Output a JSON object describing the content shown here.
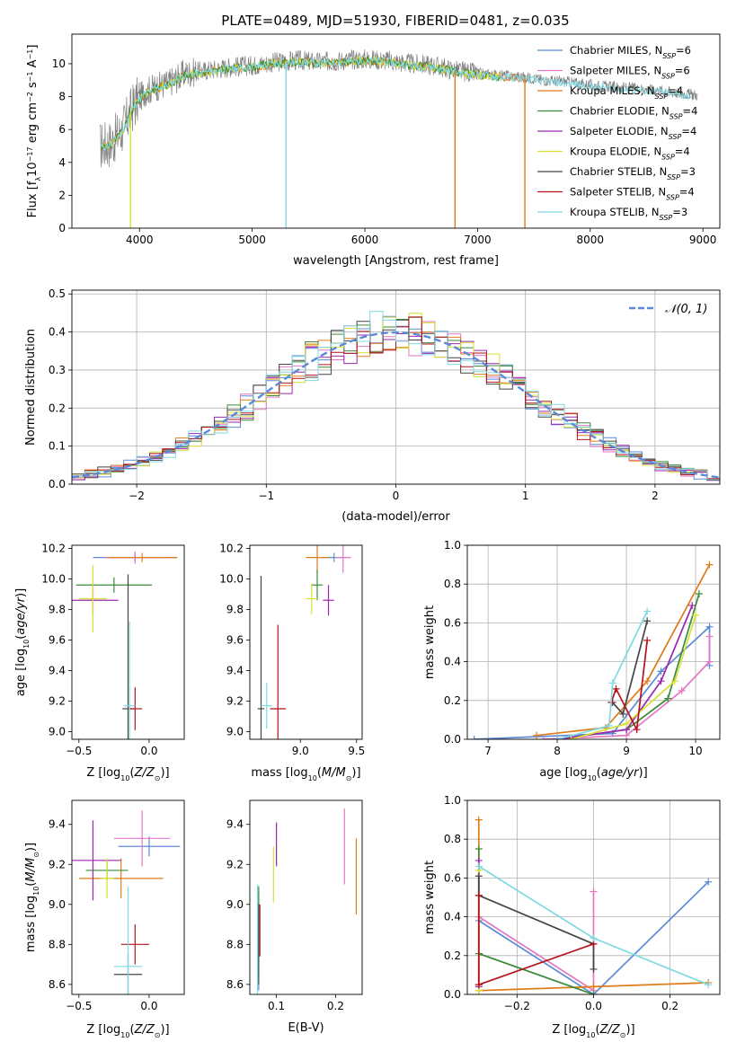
{
  "title": "PLATE=0489, MJD=51930, FIBERID=0481, z=0.035",
  "colors": {
    "c1": "#5b8bd6",
    "c2": "#e377c2",
    "c3": "#e07b1a",
    "c4": "#3b8a3b",
    "c5": "#9b27b0",
    "c6": "#d6e035",
    "c7": "#444444",
    "c8": "#b5121b",
    "c9": "#7fd9e3",
    "gray": "#808080",
    "normal": "#5b8bd6"
  },
  "legend": [
    {
      "name": "Chabrier MILES, N_{SSP}=6",
      "color": "#5b8bd6"
    },
    {
      "name": "Salpeter MILES, N_{SSP}=6",
      "color": "#e377c2"
    },
    {
      "name": "Kroupa MILES, N_{SSP}=4",
      "color": "#e07b1a"
    },
    {
      "name": "Chabrier ELODIE, N_{SSP}=4",
      "color": "#3b8a3b"
    },
    {
      "name": "Salpeter ELODIE, N_{SSP}=4",
      "color": "#9b27b0"
    },
    {
      "name": "Kroupa ELODIE, N_{SSP}=4",
      "color": "#d6e035"
    },
    {
      "name": "Chabrier STELIB, N_{SSP}=3",
      "color": "#444444"
    },
    {
      "name": "Salpeter STELIB, N_{SSP}=4",
      "color": "#b5121b"
    },
    {
      "name": "Kroupa STELIB, N_{SSP}=3",
      "color": "#7fd9e3"
    }
  ],
  "chart_data": [
    {
      "id": "spectrum",
      "type": "line",
      "xlabel": "wavelength [Angstrom, rest frame]",
      "ylabel": "Flux [f_λ 10^{-17} erg cm^{-2} s^{-1} A^{-1}]",
      "xlim": [
        3400,
        9150
      ],
      "ylim": [
        0,
        11.8
      ],
      "xticks": [
        4000,
        5000,
        6000,
        7000,
        8000,
        9000
      ],
      "yticks": [
        0,
        2,
        4,
        6,
        8,
        10
      ],
      "continuum": [
        [
          3650,
          5.0
        ],
        [
          3750,
          5.2
        ],
        [
          3850,
          6.0
        ],
        [
          3950,
          7.5
        ],
        [
          4050,
          8.3
        ],
        [
          4150,
          8.6
        ],
        [
          4250,
          8.8
        ],
        [
          4400,
          9.4
        ],
        [
          4600,
          9.6
        ],
        [
          4800,
          9.8
        ],
        [
          5000,
          9.9
        ],
        [
          5200,
          10.1
        ],
        [
          5400,
          10.2
        ],
        [
          5600,
          10.1
        ],
        [
          5800,
          10.2
        ],
        [
          6000,
          10.3
        ],
        [
          6200,
          10.2
        ],
        [
          6400,
          10.0
        ],
        [
          6600,
          9.9
        ],
        [
          6800,
          9.6
        ],
        [
          7000,
          9.4
        ],
        [
          7200,
          9.3
        ],
        [
          7400,
          9.2
        ],
        [
          7600,
          9.0
        ],
        [
          7800,
          8.9
        ],
        [
          8000,
          8.7
        ],
        [
          8200,
          8.6
        ],
        [
          8400,
          8.5
        ],
        [
          8600,
          8.4
        ],
        [
          8800,
          8.2
        ],
        [
          8950,
          8.1
        ]
      ]
    },
    {
      "id": "residuals",
      "type": "histogram",
      "xlabel": "(data-model)/error",
      "ylabel": "Normed distribution",
      "xlim": [
        -2.5,
        2.5
      ],
      "ylim": [
        0,
        0.51
      ],
      "xticks": [
        -2,
        -1,
        0,
        1,
        2
      ],
      "yticks": [
        0.0,
        0.1,
        0.2,
        0.3,
        0.4,
        0.5
      ],
      "legend": "𝒩(0, 1)"
    },
    {
      "id": "age_vs_Z",
      "type": "scatter",
      "xlabel": "Z [log10(Z/Z☉)]",
      "ylabel": "age [log10(age/yr)]",
      "xlim": [
        -0.55,
        0.25
      ],
      "ylim": [
        8.95,
        10.22
      ],
      "xticks": [
        -0.5,
        0.0
      ],
      "yticks": [
        9.0,
        9.2,
        9.4,
        9.6,
        9.8,
        10.0,
        10.2
      ],
      "points": [
        {
          "x": -0.1,
          "y": 10.14,
          "xerr": 0.3,
          "yerr": 0.03,
          "c": "#5b8bd6"
        },
        {
          "x": -0.1,
          "y": 10.14,
          "xerr": 0.22,
          "yerr": 0.04,
          "c": "#e377c2"
        },
        {
          "x": -0.05,
          "y": 10.14,
          "xerr": 0.25,
          "yerr": 0.03,
          "c": "#e07b1a"
        },
        {
          "x": -0.25,
          "y": 9.96,
          "xerr": 0.27,
          "yerr": 0.05,
          "c": "#3b8a3b"
        },
        {
          "x": -0.4,
          "y": 9.86,
          "xerr": 0.18,
          "yerr": 0.1,
          "c": "#9b27b0"
        },
        {
          "x": -0.4,
          "y": 9.87,
          "xerr": 0.1,
          "yerr": 0.22,
          "c": "#d6e035"
        },
        {
          "x": -0.15,
          "y": 9.15,
          "xerr": 0.04,
          "yerr": 0.88,
          "c": "#444444"
        },
        {
          "x": -0.1,
          "y": 9.15,
          "xerr": 0.05,
          "yerr": 0.14,
          "c": "#b5121b"
        },
        {
          "x": -0.14,
          "y": 9.17,
          "xerr": 0.04,
          "yerr": 0.55,
          "c": "#7fd9e3"
        }
      ]
    },
    {
      "id": "age_vs_mass",
      "type": "scatter",
      "xlabel": "mass [log10(M/M☉)]",
      "ylabel": "",
      "xlim": [
        8.55,
        9.55
      ],
      "ylim": [
        8.95,
        10.22
      ],
      "xticks": [
        9.0,
        9.5
      ],
      "yticks": [
        9.0,
        9.2,
        9.4,
        9.6,
        9.8,
        10.0,
        10.2
      ],
      "points": [
        {
          "x": 9.3,
          "y": 10.14,
          "xerr": 0.1,
          "yerr": 0.03,
          "c": "#5b8bd6"
        },
        {
          "x": 9.38,
          "y": 10.14,
          "xerr": 0.07,
          "yerr": 0.1,
          "c": "#e377c2"
        },
        {
          "x": 9.15,
          "y": 10.14,
          "xerr": 0.1,
          "yerr": 0.1,
          "c": "#e07b1a"
        },
        {
          "x": 9.15,
          "y": 9.96,
          "xerr": 0.05,
          "yerr": 0.1,
          "c": "#3b8a3b"
        },
        {
          "x": 9.25,
          "y": 9.86,
          "xerr": 0.05,
          "yerr": 0.1,
          "c": "#9b27b0"
        },
        {
          "x": 9.1,
          "y": 9.87,
          "xerr": 0.05,
          "yerr": 0.1,
          "c": "#d6e035"
        },
        {
          "x": 8.65,
          "y": 9.15,
          "xerr": 0.03,
          "yerr": 0.87,
          "c": "#444444"
        },
        {
          "x": 8.8,
          "y": 9.15,
          "xerr": 0.07,
          "yerr": 0.55,
          "c": "#b5121b"
        },
        {
          "x": 8.7,
          "y": 9.17,
          "xerr": 0.05,
          "yerr": 0.15,
          "c": "#7fd9e3"
        }
      ]
    },
    {
      "id": "massweight_vs_age",
      "type": "line",
      "xlabel": "age [log10(age/yr)]",
      "ylabel": "mass weight",
      "xlim": [
        6.7,
        10.35
      ],
      "ylim": [
        0,
        1
      ],
      "xticks": [
        7,
        8,
        9,
        10
      ],
      "yticks": [
        0.0,
        0.2,
        0.4,
        0.6,
        0.8,
        1.0
      ],
      "series": [
        {
          "c": "#5b8bd6",
          "x": [
            6.8,
            8.8,
            9.5,
            10.2,
            10.2
          ],
          "y": [
            0.0,
            0.03,
            0.35,
            0.58,
            0.38
          ]
        },
        {
          "c": "#e377c2",
          "x": [
            7.8,
            9.0,
            9.8,
            10.2,
            10.2
          ],
          "y": [
            0.0,
            0.02,
            0.25,
            0.4,
            0.53
          ]
        },
        {
          "c": "#e07b1a",
          "x": [
            7.7,
            8.7,
            9.3,
            10.2
          ],
          "y": [
            0.02,
            0.06,
            0.3,
            0.9
          ]
        },
        {
          "c": "#3b8a3b",
          "x": [
            8.0,
            9.0,
            9.6,
            10.05
          ],
          "y": [
            0.0,
            0.05,
            0.21,
            0.75
          ]
        },
        {
          "c": "#9b27b0",
          "x": [
            8.0,
            9.0,
            9.5,
            9.95
          ],
          "y": [
            0.0,
            0.05,
            0.3,
            0.69
          ]
        },
        {
          "c": "#d6e035",
          "x": [
            8.2,
            9.0,
            9.7,
            10.0
          ],
          "y": [
            0.0,
            0.08,
            0.3,
            0.64
          ]
        },
        {
          "c": "#444444",
          "x": [
            8.8,
            8.95,
            9.3
          ],
          "y": [
            0.19,
            0.13,
            0.61
          ]
        },
        {
          "c": "#b5121b",
          "x": [
            8.78,
            8.85,
            9.15,
            9.3
          ],
          "y": [
            0.19,
            0.26,
            0.05,
            0.51
          ]
        },
        {
          "c": "#7fd9e3",
          "x": [
            8.0,
            8.75,
            8.8,
            9.3
          ],
          "y": [
            0.0,
            0.07,
            0.29,
            0.66
          ]
        }
      ]
    },
    {
      "id": "mass_vs_Z",
      "type": "scatter",
      "xlabel": "Z [log10(Z/Z☉)]",
      "ylabel": "mass [log10(M/M☉)]",
      "xlim": [
        -0.55,
        0.25
      ],
      "ylim": [
        8.55,
        9.52
      ],
      "xticks": [
        -0.5,
        0.0
      ],
      "yticks": [
        8.6,
        8.8,
        9.0,
        9.2,
        9.4
      ],
      "points": [
        {
          "x": 0.0,
          "y": 9.29,
          "xerr": 0.22,
          "yerr": 0.05,
          "c": "#5b8bd6"
        },
        {
          "x": -0.05,
          "y": 9.33,
          "xerr": 0.2,
          "yerr": 0.14,
          "c": "#e377c2"
        },
        {
          "x": -0.2,
          "y": 9.13,
          "xerr": 0.3,
          "yerr": 0.1,
          "c": "#e07b1a"
        },
        {
          "x": -0.3,
          "y": 9.17,
          "xerr": 0.15,
          "yerr": 0.05,
          "c": "#3b8a3b"
        },
        {
          "x": -0.4,
          "y": 9.22,
          "xerr": 0.2,
          "yerr": 0.2,
          "c": "#9b27b0"
        },
        {
          "x": -0.3,
          "y": 9.13,
          "xerr": 0.05,
          "yerr": 0.1,
          "c": "#d6e035"
        },
        {
          "x": -0.15,
          "y": 8.65,
          "xerr": 0.1,
          "yerr": 0.1,
          "c": "#444444"
        },
        {
          "x": -0.1,
          "y": 8.8,
          "xerr": 0.1,
          "yerr": 0.1,
          "c": "#b5121b"
        },
        {
          "x": -0.15,
          "y": 8.69,
          "xerr": 0.1,
          "yerr": 0.4,
          "c": "#7fd9e3"
        }
      ]
    },
    {
      "id": "mass_vs_ebv",
      "type": "scatter",
      "xlabel": "E(B-V)",
      "ylabel": "",
      "xlim": [
        0.055,
        0.245
      ],
      "ylim": [
        8.55,
        9.52
      ],
      "xticks": [
        0.1,
        0.2
      ],
      "yticks": [
        8.6,
        8.8,
        9.0,
        9.2,
        9.4
      ],
      "points": [
        {
          "x": 0.07,
          "y": 8.82,
          "yerr": 0.25,
          "c": "#5b8bd6"
        },
        {
          "x": 0.215,
          "y": 9.29,
          "yerr": 0.19,
          "c": "#e377c2"
        },
        {
          "x": 0.235,
          "y": 9.14,
          "yerr": 0.19,
          "c": "#e07b1a"
        },
        {
          "x": 0.07,
          "y": 8.86,
          "yerr": 0.23,
          "c": "#3b8a3b"
        },
        {
          "x": 0.1,
          "y": 9.3,
          "yerr": 0.11,
          "c": "#9b27b0"
        },
        {
          "x": 0.095,
          "y": 9.15,
          "yerr": 0.14,
          "c": "#d6e035"
        },
        {
          "x": 0.07,
          "y": 8.8,
          "yerr": 0.2,
          "c": "#444444"
        },
        {
          "x": 0.072,
          "y": 8.87,
          "yerr": 0.13,
          "c": "#b5121b"
        },
        {
          "x": 0.068,
          "y": 8.82,
          "yerr": 0.28,
          "c": "#7fd9e3"
        }
      ]
    },
    {
      "id": "massweight_vs_Z",
      "type": "line",
      "xlabel": "Z [log10(Z/Z☉)]",
      "ylabel": "mass weight",
      "xlim": [
        -0.33,
        0.33
      ],
      "ylim": [
        0,
        1
      ],
      "xticks": [
        -0.2,
        0.0,
        0.2
      ],
      "yticks": [
        0.0,
        0.2,
        0.4,
        0.6,
        0.8,
        1.0
      ],
      "series": [
        {
          "c": "#5b8bd6",
          "x": [
            -0.3,
            0.0,
            0.3
          ],
          "y": [
            0.38,
            0.0,
            0.58
          ]
        },
        {
          "c": "#e377c2",
          "x": [
            -0.3,
            0.0,
            0.0
          ],
          "y": [
            0.4,
            0.02,
            0.53
          ]
        },
        {
          "c": "#e07b1a",
          "x": [
            -0.3,
            -0.3,
            0.0,
            0.3
          ],
          "y": [
            0.9,
            0.02,
            0.04,
            0.06
          ]
        },
        {
          "c": "#3b8a3b",
          "x": [
            -0.3,
            -0.3,
            0.0
          ],
          "y": [
            0.75,
            0.21,
            0.0
          ]
        },
        {
          "c": "#9b27b0",
          "x": [
            -0.3,
            -0.3
          ],
          "y": [
            0.69,
            0.04
          ]
        },
        {
          "c": "#d6e035",
          "x": [
            -0.3,
            -0.3
          ],
          "y": [
            0.64,
            0.02
          ]
        },
        {
          "c": "#444444",
          "x": [
            -0.3,
            -0.3,
            0.0,
            0.0
          ],
          "y": [
            0.61,
            0.51,
            0.26,
            0.13
          ]
        },
        {
          "c": "#b5121b",
          "x": [
            -0.3,
            -0.3,
            0.0,
            -0.3
          ],
          "y": [
            0.51,
            0.05,
            0.26,
            0.05
          ]
        },
        {
          "c": "#7fd9e3",
          "x": [
            -0.3,
            0.0,
            0.3
          ],
          "y": [
            0.66,
            0.29,
            0.05
          ]
        }
      ]
    }
  ]
}
